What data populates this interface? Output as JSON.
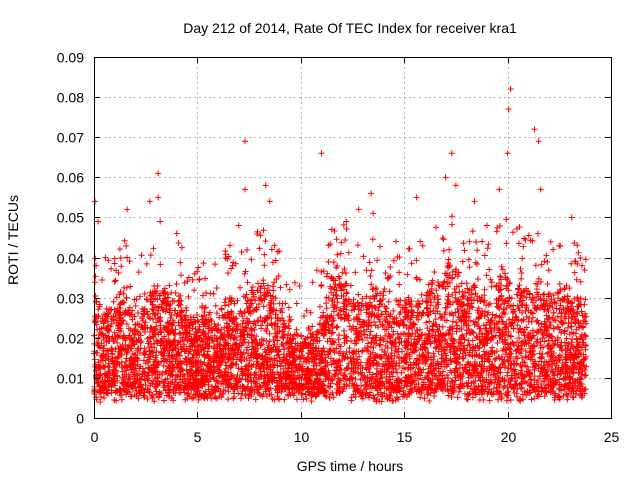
{
  "chart_data": {
    "type": "scatter",
    "title": "Day 212 of 2014, Rate Of TEC Index for receiver kra1",
    "xlabel": "GPS time / hours",
    "ylabel": "ROTI / TECUs",
    "xlim": [
      0,
      25
    ],
    "ylim": [
      0,
      0.09
    ],
    "xticks": [
      0,
      5,
      10,
      15,
      20,
      25
    ],
    "xtick_labels": [
      "0",
      "5",
      "10",
      "15",
      "20",
      "25"
    ],
    "yticks": [
      0,
      0.01,
      0.02,
      0.03,
      0.04,
      0.05,
      0.06,
      0.07,
      0.08,
      0.09
    ],
    "ytick_labels": [
      "0",
      "0.01",
      "0.02",
      "0.03",
      "0.04",
      "0.05",
      "0.06",
      "0.07",
      "0.08",
      "0.09"
    ],
    "grid": true,
    "marker": "+",
    "color": "#ff0000",
    "data_range_hours": [
      0,
      23.8
    ],
    "series": [
      {
        "name": "ROTI",
        "points": [
          [
            0.05,
            0.054
          ],
          [
            0.1,
            0.038
          ],
          [
            0.2,
            0.049
          ],
          [
            0.3,
            0.004
          ],
          [
            1.0,
            0.034
          ],
          [
            1.6,
            0.04
          ],
          [
            1.6,
            0.052
          ],
          [
            2.7,
            0.054
          ],
          [
            3.1,
            0.061
          ],
          [
            3.1,
            0.055
          ],
          [
            3.2,
            0.049
          ],
          [
            4.0,
            0.046
          ],
          [
            6.7,
            0.038
          ],
          [
            7.0,
            0.048
          ],
          [
            7.3,
            0.069
          ],
          [
            7.3,
            0.057
          ],
          [
            8.3,
            0.058
          ],
          [
            8.5,
            0.054
          ],
          [
            8.6,
            0.042
          ],
          [
            8.7,
            0.027
          ],
          [
            11.0,
            0.066
          ],
          [
            11.5,
            0.047
          ],
          [
            12.2,
            0.049
          ],
          [
            12.8,
            0.052
          ],
          [
            13.4,
            0.056
          ],
          [
            13.5,
            0.051
          ],
          [
            14.6,
            0.044
          ],
          [
            15.6,
            0.055
          ],
          [
            17.0,
            0.06
          ],
          [
            17.3,
            0.066
          ],
          [
            17.5,
            0.058
          ],
          [
            18.4,
            0.054
          ],
          [
            19.0,
            0.048
          ],
          [
            19.6,
            0.057
          ],
          [
            20.0,
            0.066
          ],
          [
            20.05,
            0.077
          ],
          [
            20.15,
            0.082
          ],
          [
            21.3,
            0.072
          ],
          [
            21.5,
            0.069
          ],
          [
            21.6,
            0.057
          ],
          [
            22.2,
            0.042
          ],
          [
            23.1,
            0.05
          ],
          [
            23.6,
            0.038
          ]
        ]
      }
    ]
  }
}
